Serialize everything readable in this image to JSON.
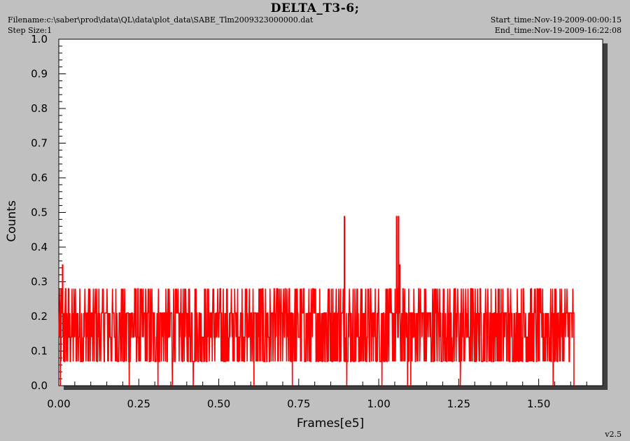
{
  "header": {
    "title": "DELTA_T3-6;",
    "filename": "Filename:c:\\saber\\prod\\data\\QL\\data\\plot_data\\SABE_Tlm2009323000000.dat",
    "step_size": "Step Size:1",
    "start_time": "Start_time:Nov-19-2009-00:00:15",
    "end_time": "End_time:Nov-19-2009-16:22:08"
  },
  "version": "v2.5",
  "colors": {
    "series": "#ff0000",
    "background": "#c0c0c0",
    "plot_area": "#ffffff",
    "shadow": "#404040"
  },
  "chart_data": {
    "type": "line",
    "title": "DELTA_T3-6;",
    "xlabel": "Frames[e5]",
    "ylabel": "Counts",
    "xlim": [
      0,
      1.7
    ],
    "ylim": [
      0,
      1.0
    ],
    "x_ticks": [
      "0.00",
      "0.25",
      "0.50",
      "0.75",
      "1.00",
      "1.25",
      "1.50"
    ],
    "y_ticks": [
      "0.0",
      "0.1",
      "0.2",
      "0.3",
      "0.4",
      "0.5",
      "0.6",
      "0.7",
      "0.8",
      "0.9",
      "1.0"
    ],
    "grid": false,
    "series": [
      {
        "color": "#ff0000",
        "x_range": [
          0,
          1.61
        ],
        "levels": [
          0.0,
          0.07,
          0.14,
          0.21,
          0.28
        ],
        "base_level": 0.21,
        "typical_min": 0.07,
        "typical_max": 0.28,
        "drops_to_zero_at": [
          0.005,
          0.22,
          0.31,
          0.355,
          0.42,
          0.61,
          0.73,
          0.9,
          1.01,
          1.09,
          1.1,
          1.255,
          1.545,
          1.61
        ],
        "spikes": [
          {
            "x": 0.012,
            "y": 0.35
          },
          {
            "x": 0.893,
            "y": 0.49
          },
          {
            "x": 1.056,
            "y": 0.49
          },
          {
            "x": 1.062,
            "y": 0.49
          },
          {
            "x": 1.066,
            "y": 0.35
          }
        ]
      }
    ]
  }
}
